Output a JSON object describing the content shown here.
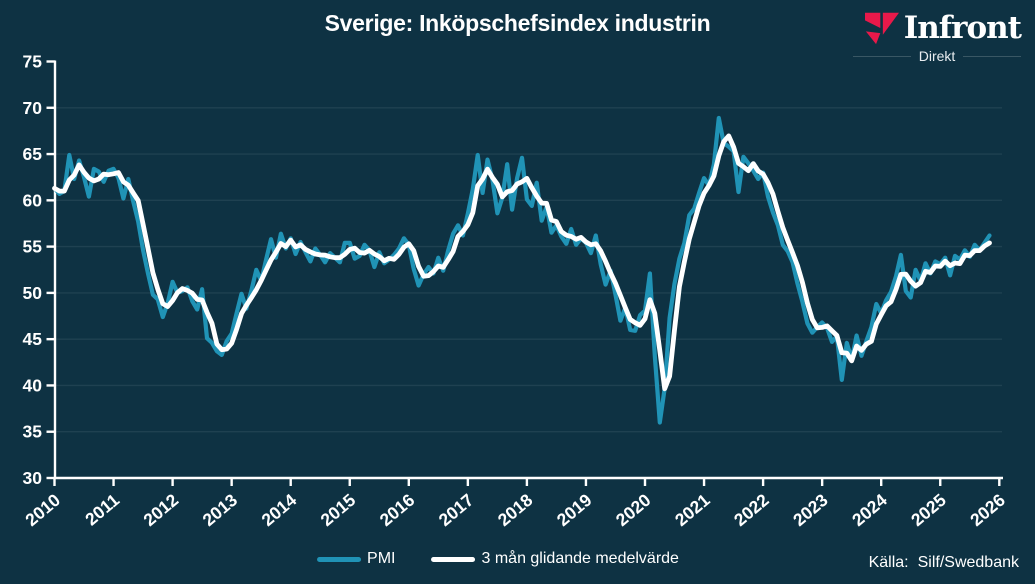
{
  "header": {
    "title": "Sverige: Inköpschefsindex industrin",
    "logo": {
      "name": "Infront",
      "sub": "Direkt"
    }
  },
  "legend": {
    "items": [
      {
        "label": "PMI",
        "color": "#2093b6"
      },
      {
        "label": "3 mån glidande medelvärde",
        "color": "#ffffff"
      }
    ]
  },
  "source": {
    "label": "Källa:",
    "value": "Silf/Swedbank"
  },
  "colors": {
    "background": "#0e3243",
    "axis": "#ffffff",
    "grid": "rgba(255,255,255,0.075)",
    "pmi_line": "#2093b6",
    "ma_line": "#ffffff",
    "logo_red": "#e8194a",
    "text": "#ffffff"
  },
  "chart_data": {
    "type": "line",
    "title": "Sverige: Inköpschefsindex industrin",
    "xlabel": "",
    "ylabel": "",
    "ylim": [
      30,
      75
    ],
    "y_ticks": [
      30,
      35,
      40,
      45,
      50,
      55,
      60,
      65,
      70,
      75
    ],
    "y_gridlines": [
      35,
      40,
      45,
      50,
      55,
      60,
      65,
      70
    ],
    "x_ticks": [
      2010,
      2011,
      2012,
      2013,
      2014,
      2015,
      2016,
      2017,
      2018,
      2019,
      2020,
      2021,
      2022,
      2023,
      2024,
      2025,
      2026
    ],
    "grid": "horizontal-faint",
    "legend_position": "bottom-center",
    "source": "Källa: Silf/Swedbank",
    "series": [
      {
        "name": "PMI",
        "color": "#2093b6",
        "freq": "monthly",
        "start": "2010-01",
        "end": "2025-11",
        "values": [
          61.3,
          60.7,
          61.0,
          64.9,
          62.3,
          64.3,
          62.5,
          60.4,
          63.4,
          63.1,
          62.0,
          63.2,
          63.4,
          62.4,
          60.2,
          62.3,
          59.9,
          57.7,
          54.6,
          52.1,
          49.8,
          49.3,
          47.4,
          48.9,
          51.2,
          50.0,
          50.2,
          50.6,
          49.1,
          48.2,
          50.4,
          45.1,
          44.6,
          43.7,
          43.3,
          44.8,
          45.6,
          47.8,
          49.9,
          48.3,
          50.2,
          52.5,
          51.3,
          53.6,
          55.8,
          53.8,
          56.4,
          54.8,
          55.9,
          54.2,
          55.5,
          54.4,
          53.4,
          54.8,
          54.1,
          53.3,
          54.3,
          53.8,
          53.3,
          55.4,
          55.4,
          53.7,
          54.0,
          55.2,
          54.6,
          52.8,
          54.4,
          53.2,
          53.6,
          54.1,
          54.8,
          55.9,
          55.2,
          52.6,
          50.8,
          52.0,
          52.8,
          52.1,
          53.8,
          52.4,
          54.6,
          56.4,
          57.3,
          56.2,
          58.6,
          61.2,
          64.9,
          60.8,
          64.4,
          62.2,
          58.6,
          60.3,
          63.9,
          59.0,
          62.4,
          64.6,
          60.1,
          59.4,
          61.9,
          57.8,
          59.3,
          56.5,
          57.3,
          56.1,
          55.3,
          56.9,
          55.2,
          55.9,
          55.4,
          54.3,
          56.2,
          53.1,
          50.9,
          52.4,
          49.8,
          47.0,
          48.4,
          46.0,
          45.9,
          47.6,
          48.1,
          52.1,
          43.2,
          36.0,
          39.7,
          47.3,
          51.0,
          53.7,
          55.4,
          58.4,
          59.1,
          60.8,
          62.4,
          61.6,
          63.9,
          68.9,
          66.2,
          65.8,
          65.3,
          60.9,
          64.7,
          64.0,
          63.2,
          62.3,
          63.0,
          60.4,
          58.7,
          57.3,
          55.2,
          54.5,
          53.3,
          51.0,
          49.0,
          46.7,
          45.7,
          46.3,
          46.8,
          46.2,
          44.7,
          45.3,
          40.6,
          44.6,
          42.8,
          45.4,
          43.2,
          44.8,
          46.3,
          48.8,
          47.8,
          49.2,
          50.1,
          51.8,
          54.1,
          50.2,
          49.5,
          52.5,
          51.3,
          53.2,
          52.1,
          53.4,
          53.1,
          53.8,
          51.9,
          54.0,
          53.6,
          54.6,
          53.9,
          55.2,
          54.6,
          55.4,
          56.2
        ]
      },
      {
        "name": "3 mån glidande medelvärde",
        "color": "#ffffff",
        "derived": "trailing 3-month moving average of PMI"
      }
    ]
  }
}
